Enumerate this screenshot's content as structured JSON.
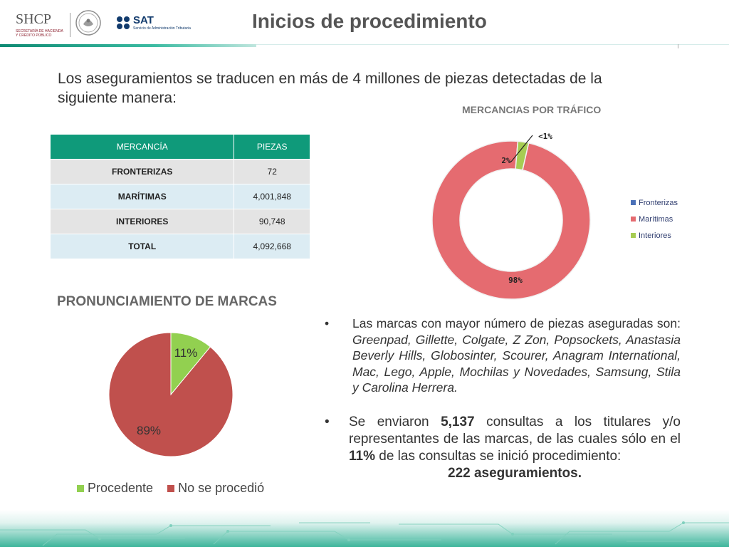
{
  "header": {
    "title": "Inicios de procedimiento",
    "shcp_logo_text": "SHCP",
    "shcp_subtext": "SECRETARÍA DE HACIENDA Y CRÉDITO PÚBLICO",
    "sat_logo_text": "SAT",
    "sat_subtext": "Servicio de Administración Tributaria"
  },
  "intro": "Los aseguramientos se traducen en más de 4 millones de piezas detectadas de la siguiente manera:",
  "table": {
    "headers": [
      "MERCANCÍA",
      "PIEZAS"
    ],
    "rows": [
      {
        "name": "FRONTERIZAS",
        "value": "72"
      },
      {
        "name": "MARÍTIMAS",
        "value": "4,001,848"
      },
      {
        "name": "INTERIORES",
        "value": "90,748"
      },
      {
        "name": "TOTAL",
        "value": "4,092,668"
      }
    ]
  },
  "colors": {
    "teal": "#0f9a7a",
    "donut_red": "#e56b70",
    "donut_green": "#a6cc53",
    "donut_blue": "#4a70b8",
    "pie_green": "#92d050",
    "pie_red": "#c0504d"
  },
  "chart_data": [
    {
      "type": "pie",
      "title": "MERCANCIAS POR TRÁFICO",
      "categories": [
        "Fronterizas",
        "Marítimas",
        "Interiores"
      ],
      "values": [
        0.002,
        97.8,
        2.2
      ],
      "data_labels": [
        "<1%",
        "98%",
        "2%"
      ],
      "legend": "right",
      "donut": true
    },
    {
      "type": "pie",
      "title": "PRONUNCIAMIENTO DE MARCAS",
      "categories": [
        "Procedente",
        "No se procedió"
      ],
      "values": [
        11,
        89
      ],
      "data_labels": [
        "11%",
        "89%"
      ],
      "legend": "bottom"
    }
  ],
  "bullets": {
    "b1_prefix": "Las marcas con mayor número de piezas aseguradas son: ",
    "b1_brands": "Greenpad, Gillette, Colgate, Z Zon, Popsockets, Anastasia Beverly Hills, Globosinter, Scourer, Anagram International, Mac, Lego, Apple, Mochilas y Novedades, Samsung, Stila y Carolina Herrera.",
    "b2_part1": "Se enviaron ",
    "b2_num": "5,137",
    "b2_part2": " consultas a los titulares y/o representantes de las marcas, de las cuales sólo en el ",
    "b2_pct": "11%",
    "b2_part3": " de las consultas se inició procedimiento:",
    "b2_result": "222 aseguramientos.",
    "bullet_char": "•"
  }
}
